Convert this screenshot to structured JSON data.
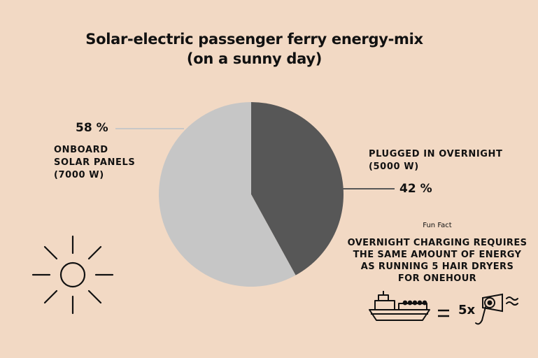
{
  "title": {
    "line1": "Solar-electric passenger ferry energy-mix",
    "line2": "(on a sunny day)"
  },
  "chart_data": {
    "type": "pie",
    "slices": [
      {
        "label": "PLUGGED IN OVERNIGHT",
        "detail": "(5000 W)",
        "value": 42,
        "display": "42 %",
        "color": "#575757"
      },
      {
        "label": "ONBOARD SOLAR PANELS",
        "detail": "(7000 W)",
        "value": 58,
        "display": "58 %",
        "color": "#c6c6c6"
      }
    ],
    "legend": "none"
  },
  "labels": {
    "solar_pct": "58 %",
    "solar_line1": "ONBOARD",
    "solar_line2": "SOLAR PANELS",
    "solar_line3": "(7000 W)",
    "grid_pct": "42 %",
    "grid_line1": "PLUGGED IN OVERNIGHT",
    "grid_line2": "(5000 W)"
  },
  "fun_fact": {
    "heading": "Fun Fact",
    "line1": "OVERNIGHT CHARGING REQUIRES",
    "line2": "THE SAME AMOUNT OF ENERGY",
    "line3": "AS RUNNING 5 HAIR DRYERS",
    "line4": "FOR ONEHOUR",
    "multiplier": "5x"
  },
  "icons": [
    "sun-icon",
    "ferry-icon",
    "equals-icon",
    "hair-dryer-icon"
  ]
}
